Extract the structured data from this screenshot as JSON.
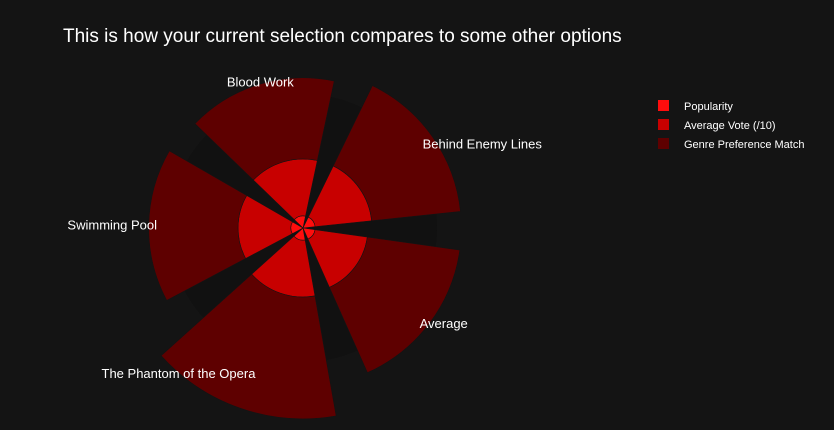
{
  "chart_data": {
    "type": "barpolar",
    "title": "This is how your current selection compares to some other options",
    "categories": [
      "Behind Enemy Lines",
      "Average",
      "The Phantom of the Opera",
      "Swimming Pool",
      "Blood Work"
    ],
    "series": [
      {
        "name": "Popularity",
        "color": "#ff0d0d",
        "values": [
          0.3,
          0.3,
          0.3,
          0.3,
          0.3
        ]
      },
      {
        "name": "Average Vote (/10)",
        "color": "#c80000",
        "values": [
          1.4,
          1.3,
          1.4,
          1.3,
          1.4
        ]
      },
      {
        "name": "Genre Preference Match",
        "color": "#5e0000",
        "values": [
          2.2,
          2.3,
          3.0,
          2.2,
          2.0
        ]
      }
    ],
    "legend_position": "top-right",
    "radial_max": 3.3
  }
}
